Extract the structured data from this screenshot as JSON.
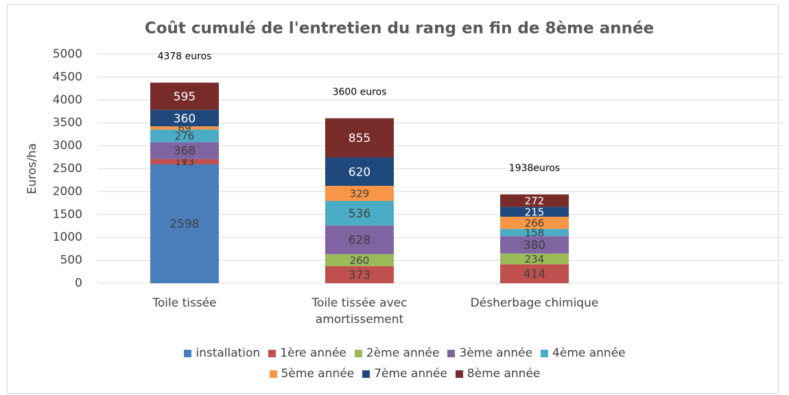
{
  "chart_data": {
    "type": "stacked_bar",
    "title": "Coût cumulé de l'entretien du rang en fin de 8ème année",
    "y_label": "Euros/ha",
    "categories": [
      "Toile tissée",
      "Toile tissée avec amortissement",
      "Désherbage chimique"
    ],
    "series": [
      {
        "name": "installation",
        "color": "#4a7ebb",
        "values": [
          2598,
          null,
          null
        ]
      },
      {
        "name": "1ère année",
        "color": "#c0504d",
        "values": [
          113,
          373,
          414
        ]
      },
      {
        "name": "2ème année",
        "color": "#9bbb59",
        "values": [
          0,
          260,
          234
        ]
      },
      {
        "name": "3ème année",
        "color": "#8064a2",
        "values": [
          368,
          628,
          380
        ]
      },
      {
        "name": "4ème année",
        "color": "#4bacc6",
        "values": [
          276,
          536,
          158
        ]
      },
      {
        "name": "5ème année",
        "color": "#f79646",
        "values": [
          69,
          329,
          266
        ]
      },
      {
        "name": "7ème année",
        "color": "#1f497d",
        "values": [
          360,
          620,
          215
        ]
      },
      {
        "name": "8ème année",
        "color": "#772c2a",
        "values": [
          595,
          855,
          272
        ]
      }
    ],
    "annotations": [
      "4378 euros",
      "3600 euros",
      "1938euros"
    ],
    "ylim": [
      0,
      5000
    ],
    "yticks": [
      0,
      500,
      1000,
      1500,
      2000,
      2500,
      3000,
      3500,
      4000,
      4500,
      5000
    ],
    "grid": true,
    "legend": "bottom"
  }
}
